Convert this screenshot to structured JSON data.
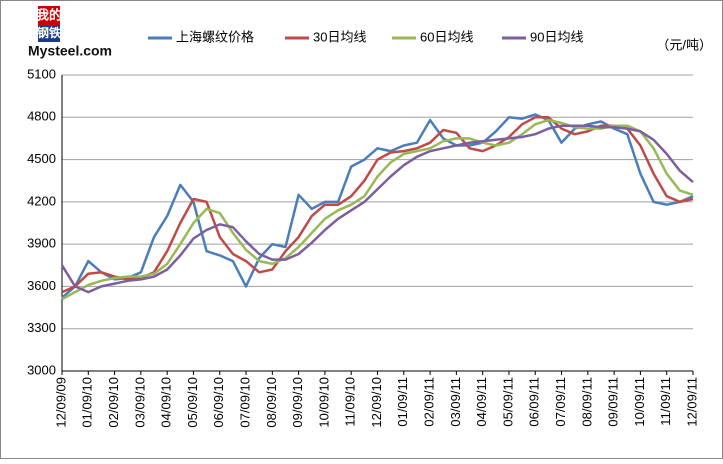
{
  "logo": {
    "top": "我的",
    "middle": "钢铁",
    "site": "Mysteel.com"
  },
  "chart_data": {
    "type": "line",
    "unit": "（元/吨）",
    "categories": [
      "12/09/09",
      null,
      "01/09/10",
      null,
      "02/09/10",
      null,
      "03/09/10",
      null,
      "04/09/10",
      null,
      "05/09/10",
      null,
      "06/09/10",
      null,
      "07/09/10",
      null,
      "08/09/10",
      null,
      "09/09/10",
      null,
      "10/09/10",
      null,
      "11/09/10",
      null,
      "12/09/10",
      null,
      "01/09/11",
      null,
      "02/09/11",
      null,
      "03/09/11",
      null,
      "04/09/11",
      null,
      "05/09/11",
      null,
      "06/09/11",
      null,
      "07/09/11",
      null,
      "08/09/11",
      null,
      "09/09/11",
      null,
      "10/09/11",
      null,
      "11/09/11",
      null,
      "12/09/11"
    ],
    "ylim": [
      3000,
      5100
    ],
    "yticks": [
      3000,
      3300,
      3600,
      3900,
      4200,
      4500,
      4800,
      5100
    ],
    "grid": true,
    "legend": "top",
    "series": [
      {
        "name": "上海螺纹价格",
        "color": "#4a7ebb",
        "values": [
          3520,
          3600,
          3780,
          3700,
          3650,
          3660,
          3700,
          3950,
          4100,
          4320,
          4200,
          3850,
          3820,
          3780,
          3600,
          3800,
          3900,
          3880,
          4250,
          4150,
          4200,
          4200,
          4450,
          4500,
          4580,
          4560,
          4600,
          4620,
          4780,
          4650,
          4600,
          4600,
          4620,
          4700,
          4800,
          4790,
          4820,
          4780,
          4620,
          4720,
          4750,
          4770,
          4720,
          4680,
          4400,
          4200,
          4180,
          4200,
          4240
        ]
      },
      {
        "name": "30日均线",
        "color": "#be4b48",
        "values": [
          3560,
          3600,
          3690,
          3700,
          3670,
          3650,
          3660,
          3700,
          3850,
          4050,
          4220,
          4200,
          3950,
          3830,
          3780,
          3700,
          3720,
          3850,
          3950,
          4100,
          4180,
          4180,
          4240,
          4350,
          4500,
          4550,
          4560,
          4580,
          4620,
          4710,
          4690,
          4580,
          4560,
          4600,
          4660,
          4750,
          4800,
          4800,
          4720,
          4680,
          4700,
          4740,
          4740,
          4720,
          4600,
          4400,
          4240,
          4200,
          4220
        ]
      },
      {
        "name": "60日均线",
        "color": "#98b954",
        "values": [
          3510,
          3560,
          3610,
          3640,
          3660,
          3670,
          3670,
          3690,
          3760,
          3900,
          4050,
          4150,
          4120,
          3980,
          3860,
          3780,
          3760,
          3800,
          3880,
          3980,
          4080,
          4140,
          4180,
          4240,
          4380,
          4480,
          4540,
          4560,
          4580,
          4630,
          4650,
          4650,
          4620,
          4600,
          4620,
          4680,
          4750,
          4780,
          4760,
          4730,
          4720,
          4720,
          4740,
          4740,
          4700,
          4580,
          4400,
          4280,
          4250
        ]
      },
      {
        "name": "90日均线",
        "color": "#7d5fa0",
        "values": [
          3750,
          3600,
          3560,
          3600,
          3620,
          3640,
          3650,
          3670,
          3720,
          3820,
          3940,
          4000,
          4040,
          4020,
          3920,
          3830,
          3790,
          3790,
          3830,
          3910,
          4000,
          4080,
          4140,
          4200,
          4290,
          4380,
          4460,
          4520,
          4560,
          4580,
          4600,
          4620,
          4630,
          4640,
          4650,
          4660,
          4680,
          4720,
          4740,
          4740,
          4740,
          4730,
          4730,
          4720,
          4700,
          4640,
          4540,
          4420,
          4340
        ]
      }
    ]
  }
}
